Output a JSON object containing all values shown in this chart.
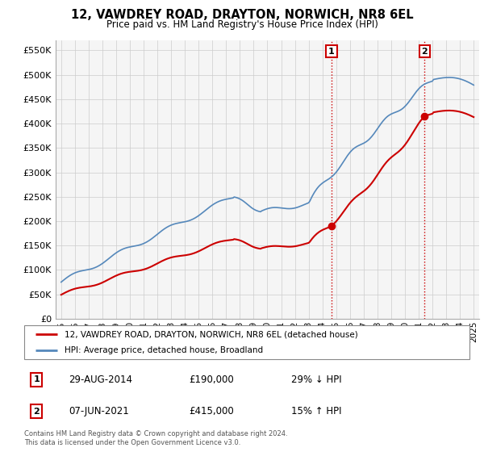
{
  "title": "12, VAWDREY ROAD, DRAYTON, NORWICH, NR8 6EL",
  "subtitle": "Price paid vs. HM Land Registry's House Price Index (HPI)",
  "legend_label_red": "12, VAWDREY ROAD, DRAYTON, NORWICH, NR8 6EL (detached house)",
  "legend_label_blue": "HPI: Average price, detached house, Broadland",
  "annotation1_date": "29-AUG-2014",
  "annotation1_price": "£190,000",
  "annotation1_hpi": "29% ↓ HPI",
  "annotation2_date": "07-JUN-2021",
  "annotation2_price": "£415,000",
  "annotation2_hpi": "15% ↑ HPI",
  "footnote": "Contains HM Land Registry data © Crown copyright and database right 2024.\nThis data is licensed under the Open Government Licence v3.0.",
  "red_color": "#cc0000",
  "blue_color": "#5588bb",
  "annotation_box_color": "#cc0000",
  "grid_color": "#cccccc",
  "background_color": "#ffffff",
  "plot_bg_color": "#f5f5f5",
  "ylim": [
    0,
    570000
  ],
  "yticks": [
    0,
    50000,
    100000,
    150000,
    200000,
    250000,
    300000,
    350000,
    400000,
    450000,
    500000,
    550000
  ],
  "sale1_year": 2014.66,
  "sale1_price": 190000,
  "sale2_year": 2021.43,
  "sale2_price": 415000
}
